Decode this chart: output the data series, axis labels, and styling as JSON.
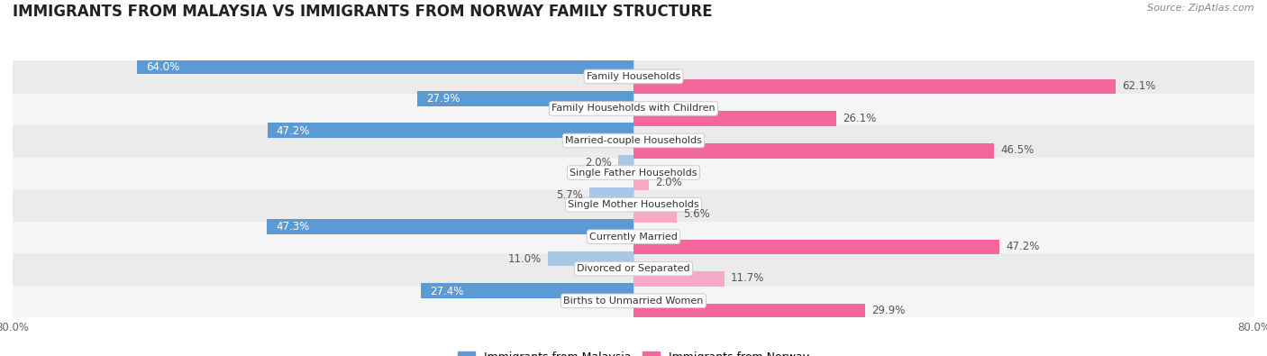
{
  "title": "IMMIGRANTS FROM MALAYSIA VS IMMIGRANTS FROM NORWAY FAMILY STRUCTURE",
  "source": "Source: ZipAtlas.com",
  "categories": [
    "Family Households",
    "Family Households with Children",
    "Married-couple Households",
    "Single Father Households",
    "Single Mother Households",
    "Currently Married",
    "Divorced or Separated",
    "Births to Unmarried Women"
  ],
  "malaysia_values": [
    64.0,
    27.9,
    47.2,
    2.0,
    5.7,
    47.3,
    11.0,
    27.4
  ],
  "norway_values": [
    62.1,
    26.1,
    46.5,
    2.0,
    5.6,
    47.2,
    11.7,
    29.9
  ],
  "malaysia_color_large": "#5b9bd5",
  "malaysia_color_small": "#a9c8e8",
  "norway_color_large": "#f4679d",
  "norway_color_small": "#f7aac8",
  "x_max": 80.0,
  "axis_label_left": "80.0%",
  "axis_label_right": "80.0%",
  "legend_malaysia": "Immigrants from Malaysia",
  "legend_norway": "Immigrants from Norway",
  "bar_height": 0.55,
  "row_bg_even": "#ebebeb",
  "row_bg_odd": "#f5f5f5",
  "background_color": "#ffffff",
  "title_fontsize": 12,
  "label_fontsize": 8.5,
  "category_fontsize": 8.0,
  "large_threshold": 15
}
